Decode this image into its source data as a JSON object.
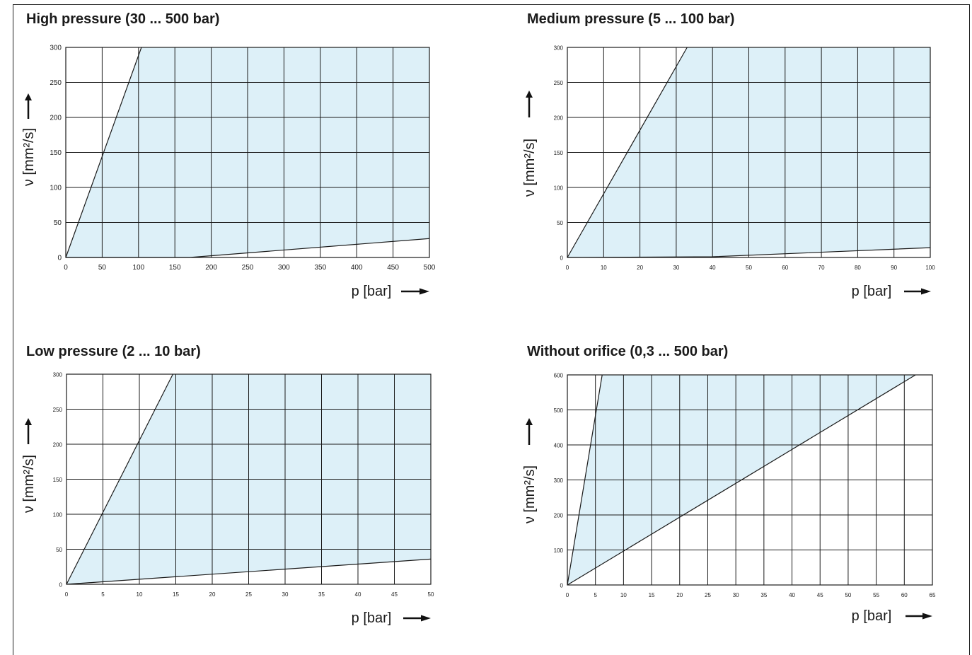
{
  "colors": {
    "fill": "#ddf0f8",
    "grid": "#1a1a1a",
    "line": "#1a1a1a"
  },
  "chart_data": [
    {
      "type": "area",
      "title": "High pressure (30 ... 500 bar)",
      "xlabel": "p [bar]",
      "ylabel": "ν [mm²/s]",
      "xlim": [
        0,
        500
      ],
      "ylim": [
        0,
        300
      ],
      "xticks": [
        0,
        50,
        100,
        150,
        200,
        250,
        300,
        350,
        400,
        450,
        500
      ],
      "yticks": [
        0,
        50,
        100,
        150,
        200,
        250,
        300
      ],
      "grid": true,
      "upper_limit": {
        "x": [
          0,
          104
        ],
        "y": [
          0,
          300
        ]
      },
      "lower_limit": {
        "x": [
          0,
          170,
          500
        ],
        "y": [
          0,
          0,
          27
        ]
      }
    },
    {
      "type": "area",
      "title": "Medium pressure (5 ... 100 bar)",
      "xlabel": "p [bar]",
      "ylabel": "ν [mm²/s]",
      "xlim": [
        0,
        100
      ],
      "ylim": [
        0,
        300
      ],
      "xticks": [
        0,
        10,
        20,
        30,
        40,
        50,
        60,
        70,
        80,
        90,
        100
      ],
      "yticks": [
        0,
        50,
        100,
        150,
        200,
        250,
        300
      ],
      "grid": true,
      "upper_limit": {
        "x": [
          0,
          33
        ],
        "y": [
          0,
          300
        ]
      },
      "lower_limit": {
        "x": [
          0,
          40,
          100
        ],
        "y": [
          0,
          1,
          14
        ]
      }
    },
    {
      "type": "area",
      "title": "Low pressure (2 ... 10 bar)",
      "xlabel": "p [bar]",
      "ylabel": "ν [mm²/s]",
      "xlim": [
        0,
        50
      ],
      "ylim": [
        0,
        300
      ],
      "xticks": [
        0,
        5,
        10,
        15,
        20,
        25,
        30,
        35,
        40,
        45,
        50
      ],
      "yticks": [
        0,
        50,
        100,
        150,
        200,
        250,
        300
      ],
      "grid": true,
      "upper_limit": {
        "x": [
          0,
          14.6
        ],
        "y": [
          0,
          300
        ]
      },
      "lower_limit": {
        "x": [
          0,
          50
        ],
        "y": [
          0,
          36
        ]
      }
    },
    {
      "type": "area",
      "title": "Without orifice (0,3 ... 500 bar)",
      "xlabel": "p [bar]",
      "ylabel": "ν [mm²/s]",
      "xlim": [
        0,
        65
      ],
      "ylim": [
        0,
        600
      ],
      "xticks": [
        0,
        5,
        10,
        15,
        20,
        25,
        30,
        35,
        40,
        45,
        50,
        55,
        60,
        65
      ],
      "yticks": [
        0,
        100,
        200,
        300,
        400,
        500,
        600
      ],
      "grid": true,
      "upper_limit": {
        "x": [
          0,
          6.2
        ],
        "y": [
          0,
          600
        ]
      },
      "lower_limit": {
        "x": [
          0,
          62
        ],
        "y": [
          0,
          600
        ]
      }
    }
  ]
}
